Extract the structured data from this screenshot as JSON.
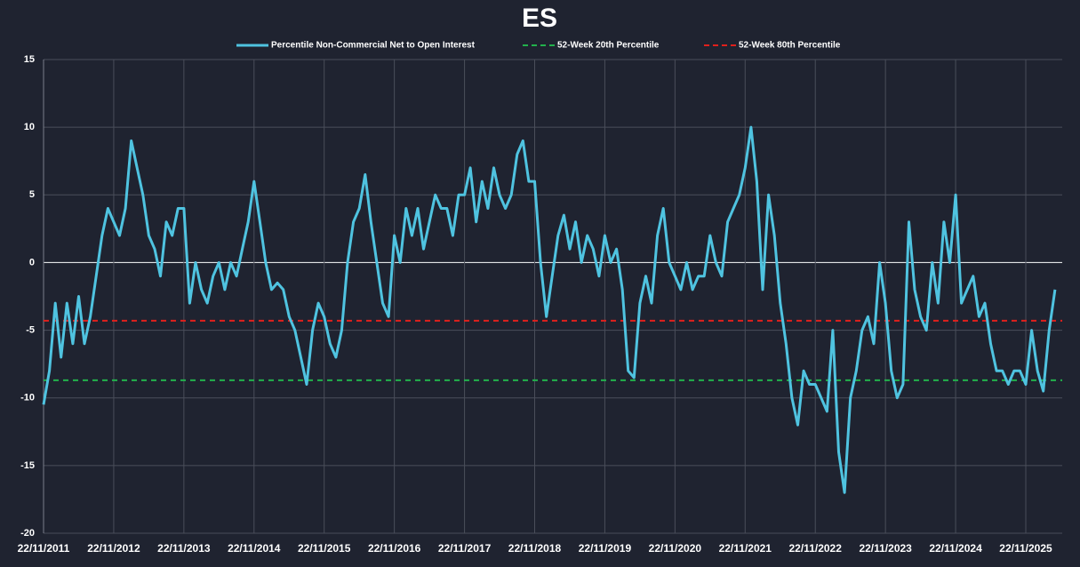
{
  "chart_data": {
    "type": "line",
    "title": "ES",
    "categories": [
      "22/11/2011",
      null,
      null,
      null,
      null,
      null,
      null,
      null,
      null,
      null,
      null,
      null,
      "22/11/2012",
      null,
      null,
      null,
      null,
      null,
      null,
      null,
      null,
      null,
      null,
      null,
      "22/11/2013",
      null,
      null,
      null,
      null,
      null,
      null,
      null,
      null,
      null,
      null,
      null,
      "22/11/2014",
      null,
      null,
      null,
      null,
      null,
      null,
      null,
      null,
      null,
      null,
      null,
      "22/11/2015",
      null,
      null,
      null,
      null,
      null,
      null,
      null,
      null,
      null,
      null,
      null,
      "22/11/2016",
      null,
      null,
      null,
      null,
      null,
      null,
      null,
      null,
      null,
      null,
      null,
      "22/11/2017",
      null,
      null,
      null,
      null,
      null,
      null,
      null,
      null,
      null,
      null,
      null,
      "22/11/2018",
      null,
      null,
      null,
      null,
      null,
      null,
      null,
      null,
      null,
      null,
      null,
      "22/11/2019",
      null,
      null,
      null,
      null,
      null,
      null,
      null,
      null,
      null,
      null,
      null,
      "22/11/2020",
      null,
      null,
      null,
      null,
      null,
      null,
      null,
      null,
      null,
      null,
      null,
      "22/11/2021",
      null,
      null,
      null,
      null,
      null,
      null,
      null,
      null,
      null,
      null,
      null,
      "22/11/2022",
      null,
      null,
      null,
      null,
      null,
      null,
      null,
      null,
      null,
      null,
      null,
      "22/11/2023",
      null,
      null,
      null,
      null,
      null,
      null,
      null,
      null,
      null,
      null,
      null,
      "22/11/2024",
      null,
      null,
      null,
      null,
      null,
      null,
      null,
      null,
      null,
      null,
      null,
      "22/11/2025",
      null,
      null,
      null,
      null,
      null
    ],
    "series": [
      {
        "name": "Percentile Non-Commercial Net to Open Interest",
        "color": "#4fc3e0",
        "values": [
          -10.5,
          -8,
          -3,
          -7,
          -3,
          -6,
          -2.5,
          -6,
          -4,
          -1,
          2,
          4,
          3,
          2,
          4,
          9,
          7,
          5,
          2,
          1,
          -1,
          3,
          2,
          4,
          4,
          -3,
          0,
          -2,
          -3,
          -1,
          0,
          -2,
          0,
          -1,
          1,
          3,
          6,
          3,
          0,
          -2,
          -1.5,
          -2,
          -4,
          -5,
          -7,
          -9,
          -5,
          -3,
          -4,
          -6,
          -7,
          -5,
          0,
          3,
          4,
          6.5,
          3,
          0,
          -3,
          -4,
          2,
          0,
          4,
          2,
          4,
          1,
          3,
          5,
          4,
          4,
          2,
          5,
          5,
          7,
          3,
          6,
          4,
          7,
          5,
          4,
          5,
          8,
          9,
          6,
          6,
          0,
          -4,
          -1,
          2,
          3.5,
          1,
          3,
          0,
          2,
          1,
          -1,
          2,
          0,
          1,
          -2,
          -8,
          -8.5,
          -3,
          -1,
          -3,
          2,
          4,
          0,
          -1,
          -2,
          0,
          -2,
          -1,
          -1,
          2,
          0,
          -1,
          3,
          4,
          5,
          7,
          10,
          6,
          -2,
          5,
          2,
          -3,
          -6,
          -10,
          -12,
          -8,
          -9,
          -9,
          -10,
          -11,
          -5,
          -14,
          -17,
          -10,
          -8,
          -5,
          -4,
          -6,
          0,
          -3,
          -8,
          -10,
          -9,
          3,
          -2,
          -4,
          -5,
          0,
          -3,
          3,
          0,
          5,
          -3,
          -2,
          -1,
          -4,
          -3,
          -6,
          -8,
          -8,
          -9,
          -8,
          -8,
          -9,
          -5,
          -8,
          -9.5,
          -5,
          -2
        ]
      }
    ],
    "reference_lines": [
      {
        "name": "52-Week 20th Percentile",
        "color": "#22b14c",
        "value": -8.7
      },
      {
        "name": "52-Week 80th Percentile",
        "color": "#e0201c",
        "value": -4.3
      }
    ],
    "ylim": [
      -20,
      15
    ],
    "yticks": [
      -20,
      -15,
      -10,
      -5,
      0,
      5,
      10,
      15
    ],
    "grid": true
  }
}
